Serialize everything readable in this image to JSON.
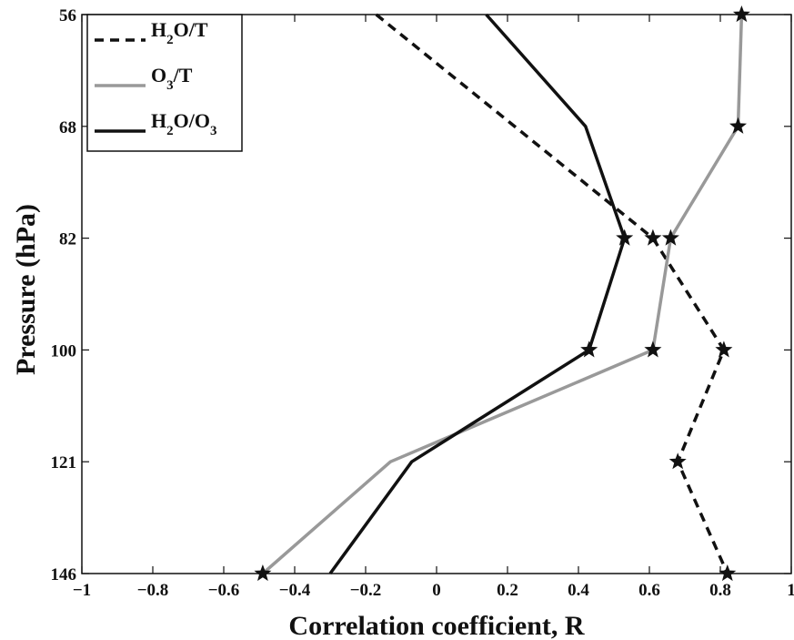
{
  "chart_data": {
    "type": "line",
    "xlabel": "Correlation coefficient, R",
    "ylabel": "Pressure (hPa)",
    "xlim": [
      -1,
      1
    ],
    "ylim": [
      146,
      56
    ],
    "y_scale": "categorical pressure levels",
    "xticks": [
      -1,
      -0.8,
      -0.6,
      -0.4,
      -0.2,
      0,
      0.2,
      0.4,
      0.6,
      0.8,
      1
    ],
    "xtick_labels": [
      "−1",
      "−0.8",
      "−0.6",
      "−0.4",
      "−0.2",
      "0",
      "0.2",
      "0.4",
      "0.6",
      "0.8",
      "1"
    ],
    "levels": [
      56,
      68,
      82,
      100,
      121,
      146
    ],
    "level_labels": [
      "56",
      "68",
      "82",
      "100",
      "121",
      "146"
    ],
    "grid": false,
    "legend_position": "top-left",
    "series": [
      {
        "name_parts": [
          "H",
          "2",
          "O/T"
        ],
        "style": "dashed",
        "color": "#111111",
        "points": [
          {
            "x": -0.17,
            "y": 56,
            "star": false
          },
          {
            "x": 0.61,
            "y": 82,
            "star": true
          },
          {
            "x": 0.81,
            "y": 100,
            "star": true
          },
          {
            "x": 0.68,
            "y": 121,
            "star": true
          },
          {
            "x": 0.82,
            "y": 146,
            "star": true
          }
        ]
      },
      {
        "name_parts": [
          "O",
          "3",
          "/T"
        ],
        "style": "solid",
        "color": "#999999",
        "points": [
          {
            "x": 0.86,
            "y": 56,
            "star": true
          },
          {
            "x": 0.85,
            "y": 68,
            "star": true
          },
          {
            "x": 0.66,
            "y": 82,
            "star": true
          },
          {
            "x": 0.61,
            "y": 100,
            "star": true
          },
          {
            "x": -0.13,
            "y": 121,
            "star": false
          },
          {
            "x": -0.49,
            "y": 146,
            "star": true
          }
        ]
      },
      {
        "name_parts": [
          "H",
          "2",
          "O/O",
          "3",
          ""
        ],
        "style": "solid",
        "color": "#111111",
        "points": [
          {
            "x": 0.14,
            "y": 56,
            "star": false
          },
          {
            "x": 0.42,
            "y": 68,
            "star": false
          },
          {
            "x": 0.53,
            "y": 82,
            "star": true
          },
          {
            "x": 0.43,
            "y": 100,
            "star": true
          },
          {
            "x": -0.07,
            "y": 121,
            "star": false
          },
          {
            "x": -0.3,
            "y": 146,
            "star": false
          }
        ]
      }
    ]
  }
}
